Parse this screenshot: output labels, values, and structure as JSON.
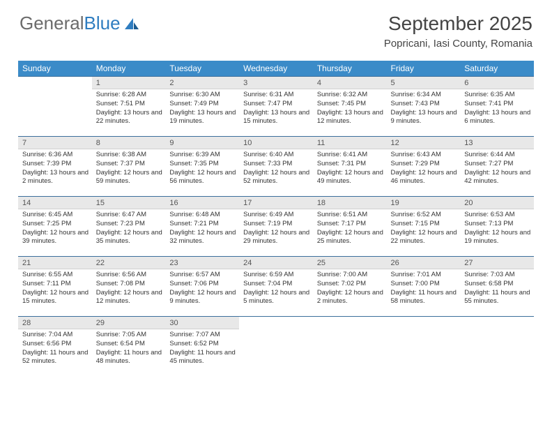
{
  "logo": {
    "textA": "General",
    "textB": "Blue"
  },
  "title": "September 2025",
  "location": "Popricani, Iasi County, Romania",
  "colors": {
    "header_bg": "#3b8bc8",
    "header_text": "#ffffff",
    "daynum_bg": "#e8e8e8",
    "row_divider": "#3b6f9c",
    "logo_blue": "#2f7dc0",
    "body_text": "#333333"
  },
  "weekdays": [
    "Sunday",
    "Monday",
    "Tuesday",
    "Wednesday",
    "Thursday",
    "Friday",
    "Saturday"
  ],
  "weeks": [
    {
      "nums": [
        "",
        "1",
        "2",
        "3",
        "4",
        "5",
        "6"
      ],
      "cells": [
        null,
        {
          "sunrise": "6:28 AM",
          "sunset": "7:51 PM",
          "daylight": "13 hours and 22 minutes."
        },
        {
          "sunrise": "6:30 AM",
          "sunset": "7:49 PM",
          "daylight": "13 hours and 19 minutes."
        },
        {
          "sunrise": "6:31 AM",
          "sunset": "7:47 PM",
          "daylight": "13 hours and 15 minutes."
        },
        {
          "sunrise": "6:32 AM",
          "sunset": "7:45 PM",
          "daylight": "13 hours and 12 minutes."
        },
        {
          "sunrise": "6:34 AM",
          "sunset": "7:43 PM",
          "daylight": "13 hours and 9 minutes."
        },
        {
          "sunrise": "6:35 AM",
          "sunset": "7:41 PM",
          "daylight": "13 hours and 6 minutes."
        }
      ]
    },
    {
      "nums": [
        "7",
        "8",
        "9",
        "10",
        "11",
        "12",
        "13"
      ],
      "cells": [
        {
          "sunrise": "6:36 AM",
          "sunset": "7:39 PM",
          "daylight": "13 hours and 2 minutes."
        },
        {
          "sunrise": "6:38 AM",
          "sunset": "7:37 PM",
          "daylight": "12 hours and 59 minutes."
        },
        {
          "sunrise": "6:39 AM",
          "sunset": "7:35 PM",
          "daylight": "12 hours and 56 minutes."
        },
        {
          "sunrise": "6:40 AM",
          "sunset": "7:33 PM",
          "daylight": "12 hours and 52 minutes."
        },
        {
          "sunrise": "6:41 AM",
          "sunset": "7:31 PM",
          "daylight": "12 hours and 49 minutes."
        },
        {
          "sunrise": "6:43 AM",
          "sunset": "7:29 PM",
          "daylight": "12 hours and 46 minutes."
        },
        {
          "sunrise": "6:44 AM",
          "sunset": "7:27 PM",
          "daylight": "12 hours and 42 minutes."
        }
      ]
    },
    {
      "nums": [
        "14",
        "15",
        "16",
        "17",
        "18",
        "19",
        "20"
      ],
      "cells": [
        {
          "sunrise": "6:45 AM",
          "sunset": "7:25 PM",
          "daylight": "12 hours and 39 minutes."
        },
        {
          "sunrise": "6:47 AM",
          "sunset": "7:23 PM",
          "daylight": "12 hours and 35 minutes."
        },
        {
          "sunrise": "6:48 AM",
          "sunset": "7:21 PM",
          "daylight": "12 hours and 32 minutes."
        },
        {
          "sunrise": "6:49 AM",
          "sunset": "7:19 PM",
          "daylight": "12 hours and 29 minutes."
        },
        {
          "sunrise": "6:51 AM",
          "sunset": "7:17 PM",
          "daylight": "12 hours and 25 minutes."
        },
        {
          "sunrise": "6:52 AM",
          "sunset": "7:15 PM",
          "daylight": "12 hours and 22 minutes."
        },
        {
          "sunrise": "6:53 AM",
          "sunset": "7:13 PM",
          "daylight": "12 hours and 19 minutes."
        }
      ]
    },
    {
      "nums": [
        "21",
        "22",
        "23",
        "24",
        "25",
        "26",
        "27"
      ],
      "cells": [
        {
          "sunrise": "6:55 AM",
          "sunset": "7:11 PM",
          "daylight": "12 hours and 15 minutes."
        },
        {
          "sunrise": "6:56 AM",
          "sunset": "7:08 PM",
          "daylight": "12 hours and 12 minutes."
        },
        {
          "sunrise": "6:57 AM",
          "sunset": "7:06 PM",
          "daylight": "12 hours and 9 minutes."
        },
        {
          "sunrise": "6:59 AM",
          "sunset": "7:04 PM",
          "daylight": "12 hours and 5 minutes."
        },
        {
          "sunrise": "7:00 AM",
          "sunset": "7:02 PM",
          "daylight": "12 hours and 2 minutes."
        },
        {
          "sunrise": "7:01 AM",
          "sunset": "7:00 PM",
          "daylight": "11 hours and 58 minutes."
        },
        {
          "sunrise": "7:03 AM",
          "sunset": "6:58 PM",
          "daylight": "11 hours and 55 minutes."
        }
      ]
    },
    {
      "nums": [
        "28",
        "29",
        "30",
        "",
        "",
        "",
        ""
      ],
      "cells": [
        {
          "sunrise": "7:04 AM",
          "sunset": "6:56 PM",
          "daylight": "11 hours and 52 minutes."
        },
        {
          "sunrise": "7:05 AM",
          "sunset": "6:54 PM",
          "daylight": "11 hours and 48 minutes."
        },
        {
          "sunrise": "7:07 AM",
          "sunset": "6:52 PM",
          "daylight": "11 hours and 45 minutes."
        },
        null,
        null,
        null,
        null
      ]
    }
  ],
  "labels": {
    "sunrise": "Sunrise:",
    "sunset": "Sunset:",
    "daylight": "Daylight:"
  }
}
